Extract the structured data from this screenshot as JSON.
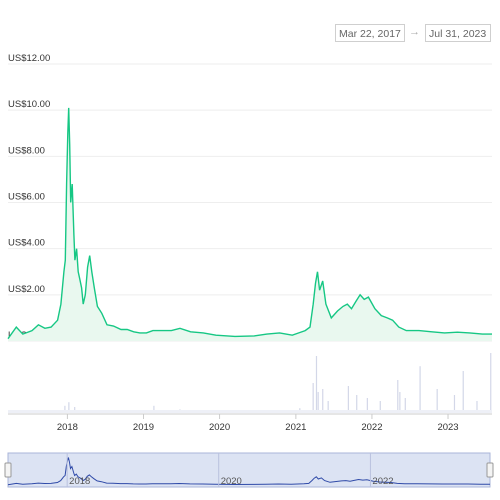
{
  "date_range": {
    "from": "Mar 22, 2017",
    "arrow": "→",
    "to": "Jul 31, 2023"
  },
  "colors": {
    "line": "#16c784",
    "fill": "#e9f8ef",
    "volume": "#d3d7e8",
    "navigator_line": "#2f4aa8",
    "navigator_mask": "#dce3f3"
  },
  "chart_data": {
    "type": "area",
    "title": "",
    "xlabel": "",
    "ylabel": "",
    "ylim": [
      0,
      12
    ],
    "y_ticks": [
      "US$12.00",
      "US$10.00",
      "US$8.00",
      "US$6.00",
      "US$4.00",
      "US$2.00",
      "US$0.00"
    ],
    "x_ticks": [
      "2018",
      "2019",
      "2020",
      "2021",
      "2022",
      "2023"
    ],
    "xlim": [
      "2017-03-22",
      "2023-07-31"
    ],
    "grid": true,
    "series": [
      {
        "x": [
          "2017-03-22",
          "2017-05-01",
          "2017-06-01",
          "2017-07-15",
          "2017-08-15",
          "2017-09-15",
          "2017-10-15",
          "2017-11-15",
          "2017-12-01",
          "2017-12-15",
          "2017-12-22",
          "2017-12-28",
          "2018-01-03",
          "2018-01-07",
          "2018-01-12",
          "2018-01-17",
          "2018-01-24",
          "2018-02-01",
          "2018-02-06",
          "2018-02-14",
          "2018-02-22",
          "2018-03-01",
          "2018-03-10",
          "2018-03-18",
          "2018-03-28",
          "2018-04-08",
          "2018-04-18",
          "2018-04-28",
          "2018-05-10",
          "2018-05-25",
          "2018-06-15",
          "2018-07-10",
          "2018-08-10",
          "2018-09-15",
          "2018-10-15",
          "2018-11-15",
          "2018-12-15",
          "2019-01-15",
          "2019-02-15",
          "2019-03-15",
          "2019-05-15",
          "2019-06-25",
          "2019-08-15",
          "2019-10-15",
          "2019-12-15",
          "2020-03-15",
          "2020-06-15",
          "2020-08-15",
          "2020-10-15",
          "2020-12-15",
          "2021-01-15",
          "2021-02-15",
          "2021-03-10",
          "2021-03-25",
          "2021-04-05",
          "2021-04-15",
          "2021-04-25",
          "2021-05-10",
          "2021-05-25",
          "2021-06-20",
          "2021-07-20",
          "2021-08-15",
          "2021-09-05",
          "2021-09-25",
          "2021-10-15",
          "2021-11-05",
          "2021-11-25",
          "2021-12-15",
          "2022-01-15",
          "2022-02-15",
          "2022-03-15",
          "2022-04-10",
          "2022-05-10",
          "2022-06-15",
          "2022-08-15",
          "2022-10-15",
          "2022-12-15",
          "2023-02-15",
          "2023-04-15",
          "2023-06-15",
          "2023-07-31"
        ],
        "values": [
          0.1,
          0.6,
          0.3,
          0.45,
          0.7,
          0.55,
          0.6,
          0.9,
          1.6,
          3.0,
          3.5,
          6.8,
          9.0,
          10.1,
          8.5,
          6.0,
          6.8,
          4.6,
          3.5,
          4.0,
          3.0,
          2.7,
          2.3,
          1.6,
          2.0,
          3.2,
          3.7,
          3.0,
          2.3,
          1.5,
          1.2,
          0.7,
          0.65,
          0.5,
          0.5,
          0.4,
          0.35,
          0.35,
          0.45,
          0.45,
          0.45,
          0.55,
          0.4,
          0.35,
          0.25,
          0.2,
          0.22,
          0.3,
          0.35,
          0.25,
          0.35,
          0.45,
          0.6,
          1.6,
          2.5,
          3.0,
          2.2,
          2.6,
          1.6,
          1.0,
          1.3,
          1.5,
          1.6,
          1.4,
          1.7,
          2.0,
          1.8,
          1.9,
          1.4,
          1.1,
          1.0,
          0.9,
          0.6,
          0.45,
          0.45,
          0.4,
          0.35,
          0.38,
          0.35,
          0.3,
          0.3
        ]
      }
    ],
    "volume_spikes": [
      {
        "x": "2017-06-10",
        "v": 0.05
      },
      {
        "x": "2017-12-20",
        "v": 0.12
      },
      {
        "x": "2018-01-08",
        "v": 0.18
      },
      {
        "x": "2018-02-05",
        "v": 0.1
      },
      {
        "x": "2019-02-20",
        "v": 0.12
      },
      {
        "x": "2019-06-25",
        "v": 0.06
      },
      {
        "x": "2021-01-20",
        "v": 0.08
      },
      {
        "x": "2021-03-25",
        "v": 0.5
      },
      {
        "x": "2021-04-10",
        "v": 0.95
      },
      {
        "x": "2021-04-18",
        "v": 0.35
      },
      {
        "x": "2021-05-10",
        "v": 0.4
      },
      {
        "x": "2021-06-05",
        "v": 0.2
      },
      {
        "x": "2021-09-10",
        "v": 0.45
      },
      {
        "x": "2021-10-20",
        "v": 0.3
      },
      {
        "x": "2021-12-10",
        "v": 0.25
      },
      {
        "x": "2022-02-10",
        "v": 0.2
      },
      {
        "x": "2022-05-05",
        "v": 0.55
      },
      {
        "x": "2022-05-15",
        "v": 0.35
      },
      {
        "x": "2022-06-10",
        "v": 0.25
      },
      {
        "x": "2022-08-20",
        "v": 0.78
      },
      {
        "x": "2022-11-10",
        "v": 0.4
      },
      {
        "x": "2023-02-01",
        "v": 0.3
      },
      {
        "x": "2023-03-15",
        "v": 0.7
      },
      {
        "x": "2023-05-20",
        "v": 0.2
      },
      {
        "x": "2023-07-25",
        "v": 1.0
      }
    ],
    "navigator": {
      "ticks": [
        "2018",
        "2020",
        "2022"
      ]
    }
  }
}
